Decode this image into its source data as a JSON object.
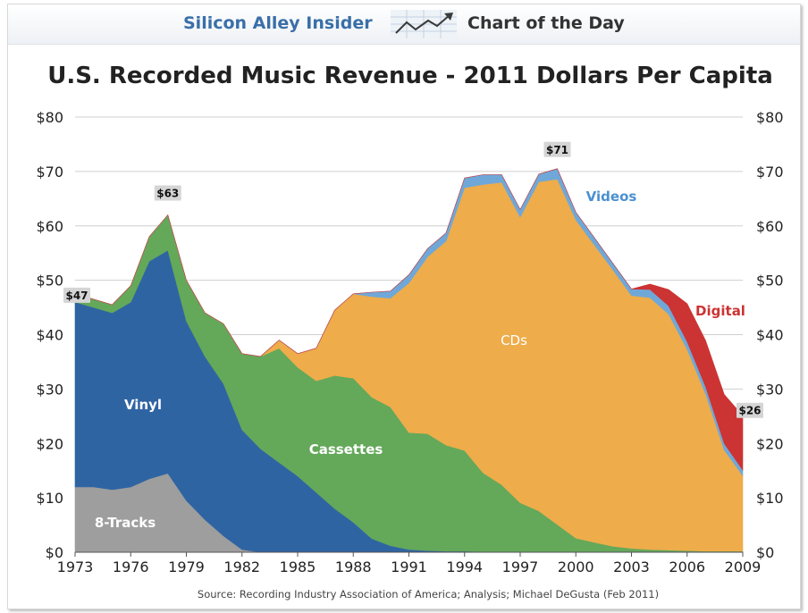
{
  "header": {
    "brand": "Silicon Alley Insider",
    "section": "Chart of the Day"
  },
  "chart_data": {
    "type": "area",
    "stacked": true,
    "title": "U.S. Recorded Music Revenue - 2011 Dollars Per Capita",
    "source": "Source: Recording Industry Association of America; Analysis; Michael DeGusta (Feb 2011)",
    "ylim": [
      0,
      80
    ],
    "xlim": [
      1973,
      2009
    ],
    "y_ticks": [
      0,
      10,
      20,
      30,
      40,
      50,
      60,
      70,
      80
    ],
    "y_tick_labels": [
      "$0",
      "$10",
      "$20",
      "$30",
      "$40",
      "$50",
      "$60",
      "$70",
      "$80"
    ],
    "x_ticks": [
      1973,
      1976,
      1979,
      1982,
      1985,
      1988,
      1991,
      1994,
      1997,
      2000,
      2003,
      2006,
      2009
    ],
    "x_tick_labels": [
      "1973",
      "1976",
      "1979",
      "1982",
      "1985",
      "1988",
      "1991",
      "1994",
      "1997",
      "2000",
      "2003",
      "2006",
      "2009"
    ],
    "x": [
      1973,
      1974,
      1975,
      1976,
      1977,
      1978,
      1979,
      1980,
      1981,
      1982,
      1983,
      1984,
      1985,
      1986,
      1987,
      1988,
      1989,
      1990,
      1991,
      1992,
      1993,
      1994,
      1995,
      1996,
      1997,
      1998,
      1999,
      2000,
      2001,
      2002,
      2003,
      2004,
      2005,
      2006,
      2007,
      2008,
      2009
    ],
    "series": [
      {
        "name": "8-Tracks",
        "color": "#9e9e9e",
        "values": [
          12,
          12,
          11.5,
          12,
          13.5,
          14.5,
          9.5,
          6,
          3,
          0.5,
          0,
          0,
          0,
          0,
          0,
          0,
          0,
          0,
          0,
          0,
          0,
          0,
          0,
          0,
          0,
          0,
          0,
          0,
          0,
          0,
          0,
          0,
          0,
          0,
          0,
          0,
          0
        ]
      },
      {
        "name": "Vinyl",
        "color": "#2f64a3",
        "values": [
          34,
          33,
          32.5,
          34,
          40,
          41,
          33,
          30,
          28,
          22,
          19,
          16.5,
          14,
          11,
          8,
          5.5,
          2.5,
          1.2,
          0.5,
          0.3,
          0.2,
          0.2,
          0.1,
          0.1,
          0.1,
          0.1,
          0.1,
          0.1,
          0.1,
          0.1,
          0.1,
          0.1,
          0.1,
          0.1,
          0.1,
          0.1,
          0.1
        ]
      },
      {
        "name": "Cassettes",
        "color": "#64a85a",
        "values": [
          1.5,
          1.5,
          1.5,
          3,
          4.5,
          6.5,
          7.5,
          8,
          11,
          14,
          17,
          21,
          20,
          20.5,
          24.5,
          26.5,
          26,
          25.5,
          21.5,
          21.5,
          19.5,
          18.5,
          14.5,
          12.3,
          9,
          7.5,
          5,
          2.5,
          1.7,
          1,
          0.6,
          0.4,
          0.3,
          0.2,
          0.1,
          0.1,
          0.1
        ]
      },
      {
        "name": "CDs",
        "color": "#eeac4b",
        "values": [
          0,
          0,
          0,
          0,
          0,
          0,
          0,
          0,
          0,
          0,
          0,
          1.5,
          2.5,
          6,
          12,
          15.5,
          18.5,
          20,
          27.5,
          32.5,
          37.5,
          48.3,
          53,
          55.6,
          52.5,
          60.5,
          63.5,
          58.5,
          54.7,
          50.8,
          46.5,
          46.3,
          43.4,
          37,
          28.9,
          18.6,
          13.9
        ]
      },
      {
        "name": "Videos",
        "color": "#6fa8d8",
        "values": [
          0,
          0,
          0,
          0,
          0,
          0,
          0,
          0,
          0,
          0,
          0,
          0,
          0,
          0,
          0,
          0,
          0.8,
          1.3,
          1.5,
          1.5,
          1.5,
          1.8,
          1.8,
          1.4,
          1.4,
          1.4,
          1.9,
          1.4,
          1.3,
          1.2,
          1.2,
          1.5,
          1.5,
          1.4,
          1.3,
          1.2,
          1.0
        ]
      },
      {
        "name": "Digital",
        "color": "#cc3333",
        "values": [
          0,
          0,
          0,
          0,
          0,
          0,
          0,
          0,
          0,
          0,
          0,
          0,
          0,
          0,
          0,
          0,
          0,
          0,
          0,
          0,
          0,
          0,
          0,
          0,
          0,
          0,
          0,
          0,
          0,
          0,
          0,
          1,
          3,
          7,
          8.5,
          9,
          10
        ]
      }
    ],
    "series_labels": [
      "8-Tracks",
      "Vinyl",
      "Cassettes",
      "CDs",
      "Videos",
      "Digital"
    ],
    "annotations": [
      {
        "year": 1973,
        "value": 47,
        "text": "$47"
      },
      {
        "year": 1978,
        "value": 63,
        "text": "$63"
      },
      {
        "year": 1999,
        "value": 71,
        "text": "$71"
      },
      {
        "year": 2009,
        "value": 26,
        "text": "$26"
      }
    ]
  }
}
